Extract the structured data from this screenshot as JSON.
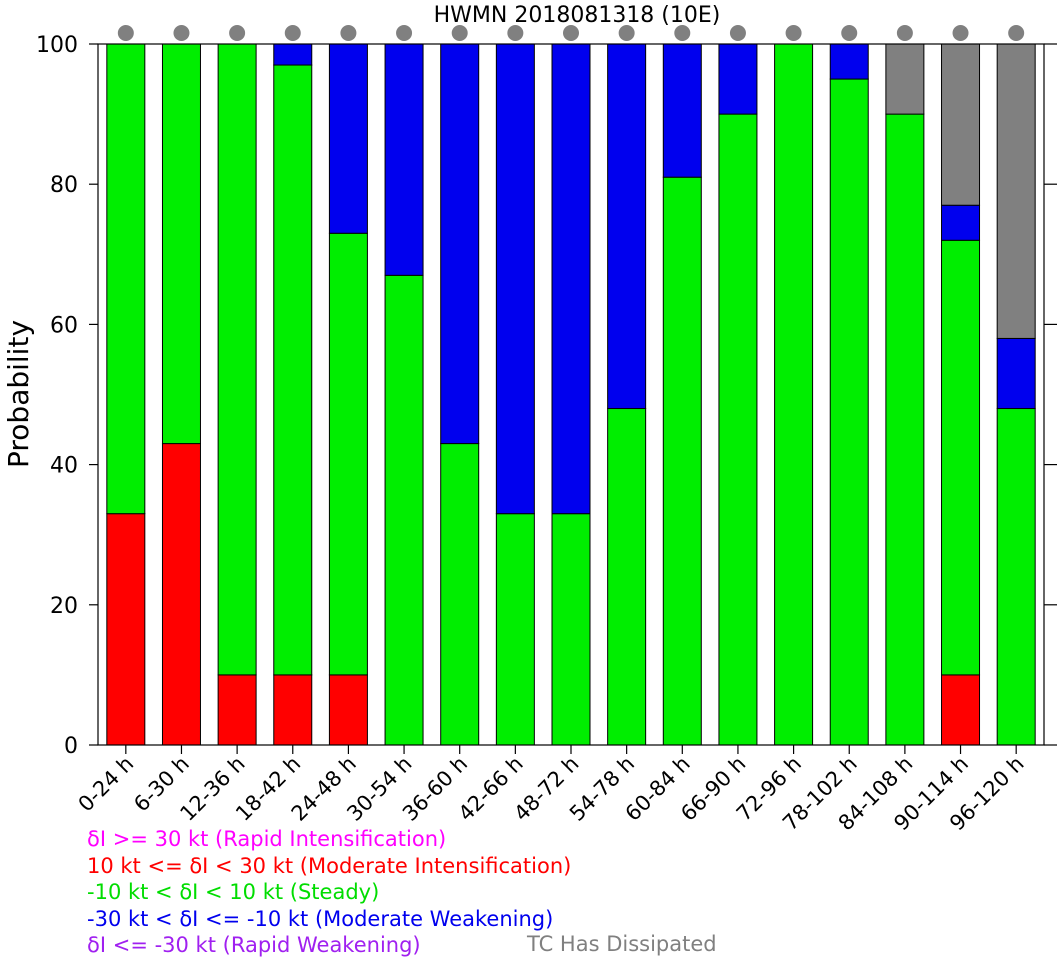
{
  "chart_data": {
    "type": "bar",
    "stacked": true,
    "title": "HWMN 2018081318  (10E)",
    "ylabel": "Probability",
    "xlabel": "",
    "ylim": [
      0,
      100
    ],
    "yticks": [
      0,
      20,
      40,
      60,
      80,
      100
    ],
    "grid": false,
    "categories": [
      "0-24 h",
      "6-30 h",
      "12-36 h",
      "18-42 h",
      "24-48 h",
      "30-54 h",
      "36-60 h",
      "42-66 h",
      "48-72 h",
      "54-78 h",
      "60-84 h",
      "66-90 h",
      "72-96 h",
      "78-102 h",
      "84-108 h",
      "90-114 h",
      "96-120 h"
    ],
    "series": [
      {
        "key": "ri",
        "color": "#ff00ff",
        "values": [
          0,
          0,
          0,
          0,
          0,
          0,
          0,
          0,
          0,
          0,
          0,
          0,
          0,
          0,
          0,
          0,
          0
        ]
      },
      {
        "key": "mi",
        "color": "#ff0000",
        "values": [
          33,
          43,
          10,
          10,
          10,
          0,
          0,
          0,
          0,
          0,
          0,
          0,
          0,
          0,
          0,
          10,
          0
        ]
      },
      {
        "key": "st",
        "color": "#00ee00",
        "values": [
          67,
          57,
          90,
          87,
          63,
          67,
          43,
          33,
          33,
          48,
          81,
          90,
          100,
          95,
          90,
          62,
          48
        ]
      },
      {
        "key": "mw",
        "color": "#0000ee",
        "values": [
          0,
          0,
          0,
          3,
          27,
          33,
          57,
          67,
          67,
          52,
          19,
          10,
          0,
          5,
          0,
          5,
          10
        ]
      },
      {
        "key": "rw",
        "color": "#a020f0",
        "values": [
          0,
          0,
          0,
          0,
          0,
          0,
          0,
          0,
          0,
          0,
          0,
          0,
          0,
          0,
          0,
          0,
          0
        ]
      },
      {
        "key": "dis",
        "color": "#808080",
        "values": [
          0,
          0,
          0,
          0,
          0,
          0,
          0,
          0,
          0,
          0,
          0,
          0,
          0,
          0,
          10,
          23,
          42
        ]
      }
    ],
    "marker_color": "#808080",
    "legend_placement": "bottom-left"
  },
  "legend": [
    {
      "text": "δI >= 30 kt (Rapid Intensification)",
      "color": "#ff00ff"
    },
    {
      "text": "10 kt <= δI < 30 kt (Moderate Intensification)",
      "color": "#ff0000"
    },
    {
      "text": "-10 kt < δI < 10 kt (Steady)",
      "color": "#00dd00"
    },
    {
      "text": "-30 kt < δI <= -10 kt (Moderate Weakening)",
      "color": "#0000ee"
    },
    {
      "text": "δI <= -30 kt (Rapid Weakening)",
      "color": "#a020f0"
    }
  ],
  "dissipated_label": {
    "text": "TC Has Dissipated",
    "color": "#808080"
  }
}
